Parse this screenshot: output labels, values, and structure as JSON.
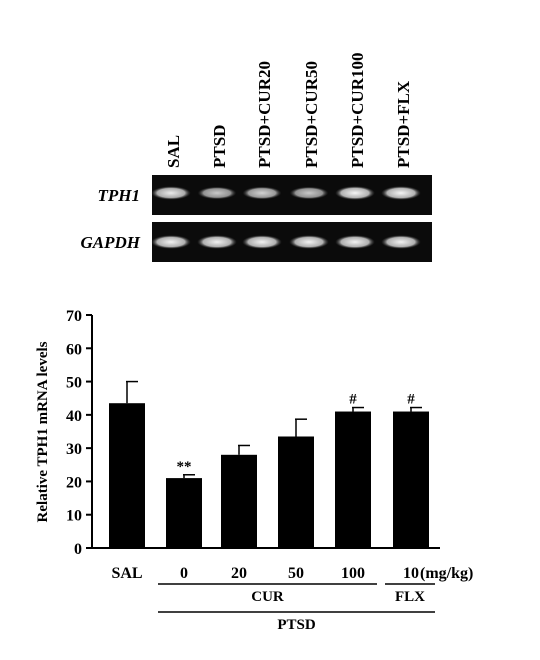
{
  "lanes": [
    "SAL",
    "PTSD",
    "PTSD+CUR20",
    "PTSD+CUR50",
    "PTSD+CUR100",
    "PTSD+FLX"
  ],
  "gels": [
    {
      "label": "TPH1",
      "band_intensity": [
        0.92,
        0.78,
        0.82,
        0.78,
        0.96,
        0.96
      ]
    },
    {
      "label": "GAPDH",
      "band_intensity": [
        0.95,
        0.95,
        0.95,
        0.95,
        0.95,
        0.95
      ]
    }
  ],
  "chart_data": {
    "type": "bar",
    "categories": [
      "SAL",
      "0",
      "20",
      "50",
      "100",
      "10"
    ],
    "values": [
      43.5,
      21,
      28,
      33.5,
      41,
      41
    ],
    "errors": [
      6.5,
      1,
      2.8,
      5.2,
      1.2,
      1.2
    ],
    "annotations": [
      "",
      "**",
      "",
      "",
      "#",
      "#"
    ],
    "ylabel": "Relative TPH1 mRNA levels",
    "ylim": [
      0,
      70
    ],
    "yticks": [
      0,
      10,
      20,
      30,
      40,
      50,
      60,
      70
    ],
    "unit_label": "(mg/kg)",
    "groups": [
      {
        "label": "CUR",
        "from": 1,
        "to": 4
      },
      {
        "label": "FLX",
        "from": 5,
        "to": 5
      },
      {
        "label": "PTSD",
        "from": 1,
        "to": 5
      }
    ],
    "bar_color": "#000000"
  }
}
